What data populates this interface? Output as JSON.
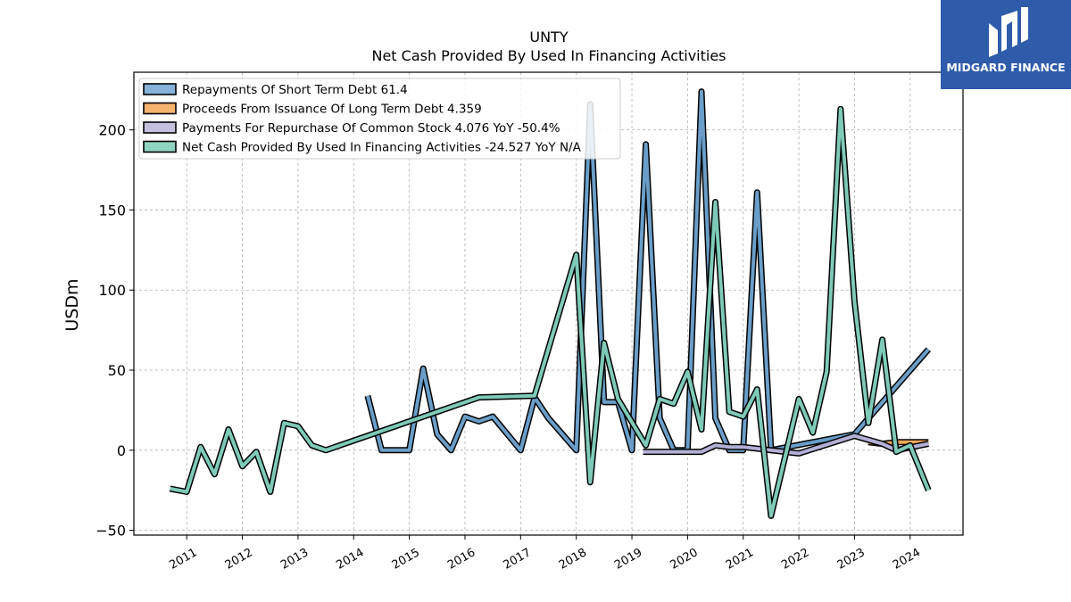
{
  "chart_data": {
    "type": "line",
    "title": "UNTY",
    "subtitle": "Net Cash Provided By Used In Financing Activities",
    "ylabel": "USDm",
    "xlabel": "",
    "ylim": [
      -53,
      236
    ],
    "xlim": [
      2010.05,
      2024.95
    ],
    "yticks": [
      -50,
      0,
      50,
      100,
      150,
      200
    ],
    "xticks": [
      "2011",
      "2012",
      "2013",
      "2014",
      "2015",
      "2016",
      "2017",
      "2018",
      "2019",
      "2020",
      "2021",
      "2022",
      "2023",
      "2024"
    ],
    "grid": true,
    "legend_position": "top-left",
    "series": [
      {
        "name": "Repayments Of Short Term Debt  61.4",
        "color": "#6a9ec8",
        "fill": "#86b1d8",
        "points": [
          [
            2014.25,
            34
          ],
          [
            2014.5,
            0
          ],
          [
            2014.75,
            0
          ],
          [
            2015.0,
            0
          ],
          [
            2015.25,
            51
          ],
          [
            2015.5,
            10
          ],
          [
            2015.75,
            0
          ],
          [
            2016.0,
            21
          ],
          [
            2016.25,
            18
          ],
          [
            2016.5,
            21
          ],
          [
            2017.0,
            0
          ],
          [
            2017.25,
            33
          ],
          [
            2017.5,
            20
          ],
          [
            2018.0,
            0
          ],
          [
            2018.25,
            216
          ],
          [
            2018.5,
            30
          ],
          [
            2018.75,
            30
          ],
          [
            2019.0,
            0
          ],
          [
            2019.25,
            191
          ],
          [
            2019.5,
            20
          ],
          [
            2019.75,
            0
          ],
          [
            2020.0,
            0
          ],
          [
            2020.25,
            224
          ],
          [
            2020.5,
            20
          ],
          [
            2020.75,
            0
          ],
          [
            2021.0,
            0
          ],
          [
            2021.25,
            161
          ],
          [
            2021.5,
            0
          ],
          [
            2023.0,
            10
          ],
          [
            2024.33,
            63
          ]
        ]
      },
      {
        "name": "Proceeds From Issuance Of Long Term Debt  4.359",
        "color": "#f0a657",
        "fill": "#f5b46e",
        "points": [
          [
            2023.25,
            5
          ],
          [
            2023.5,
            4
          ],
          [
            2023.75,
            5
          ],
          [
            2024.0,
            5
          ],
          [
            2024.33,
            5
          ]
        ]
      },
      {
        "name": "Payments For Repurchase Of Common Stock  4.076 YoY -50.4%",
        "color": "#b3b0d6",
        "fill": "#c4c1e0",
        "points": [
          [
            2019.2,
            -1
          ],
          [
            2020.25,
            -1
          ],
          [
            2020.5,
            3
          ],
          [
            2020.75,
            2
          ],
          [
            2021.0,
            2
          ],
          [
            2021.5,
            0
          ],
          [
            2022.0,
            -2
          ],
          [
            2023.0,
            9
          ],
          [
            2023.5,
            4
          ],
          [
            2023.75,
            0
          ],
          [
            2024.33,
            4
          ]
        ]
      },
      {
        "name": "Net Cash Provided By Used In Financing Activities  -24.527 YoY N/A",
        "color": "#7ecab8",
        "fill": "#8fd3c1",
        "points": [
          [
            2010.7,
            -24
          ],
          [
            2011.0,
            -26
          ],
          [
            2011.25,
            2
          ],
          [
            2011.5,
            -15
          ],
          [
            2011.75,
            13
          ],
          [
            2012.0,
            -10
          ],
          [
            2012.25,
            -1
          ],
          [
            2012.5,
            -26
          ],
          [
            2012.75,
            17
          ],
          [
            2013.0,
            15
          ],
          [
            2013.25,
            3
          ],
          [
            2013.5,
            0
          ],
          [
            2016.25,
            33
          ],
          [
            2017.25,
            34
          ],
          [
            2018.0,
            122
          ],
          [
            2018.25,
            -20
          ],
          [
            2018.5,
            67
          ],
          [
            2018.75,
            32
          ],
          [
            2019.25,
            3
          ],
          [
            2019.5,
            32
          ],
          [
            2019.75,
            29
          ],
          [
            2020.0,
            49
          ],
          [
            2020.25,
            13
          ],
          [
            2020.5,
            155
          ],
          [
            2020.75,
            24
          ],
          [
            2021.0,
            21
          ],
          [
            2021.25,
            38
          ],
          [
            2021.5,
            -41
          ],
          [
            2022.0,
            32
          ],
          [
            2022.25,
            11
          ],
          [
            2022.5,
            49
          ],
          [
            2022.75,
            213
          ],
          [
            2023.0,
            93
          ],
          [
            2023.25,
            17
          ],
          [
            2023.5,
            69
          ],
          [
            2023.75,
            -1
          ],
          [
            2024.0,
            3
          ],
          [
            2024.33,
            -25
          ]
        ]
      }
    ]
  },
  "logo": {
    "text": "MIDGARD FINANCE",
    "color": "#2f5bab"
  }
}
